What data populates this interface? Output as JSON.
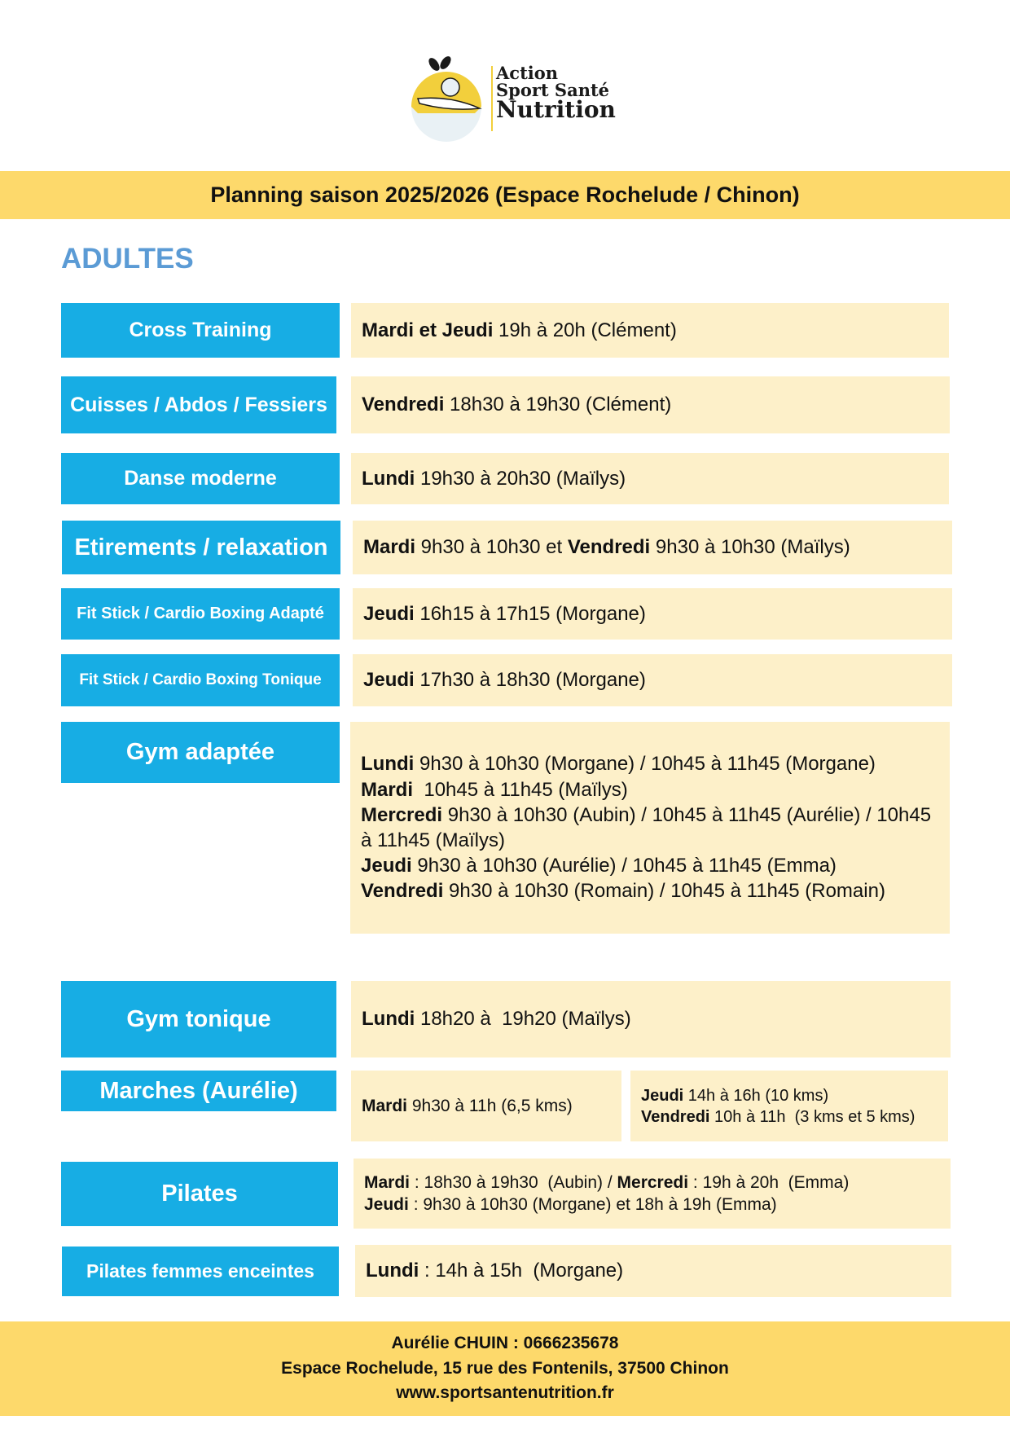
{
  "logo": {
    "text_lines": [
      "Action",
      "Sport Santé",
      "Nutrition"
    ],
    "colors": {
      "yellow": "#f2cf3c",
      "dark": "#1a1a1a",
      "light": "#e9f1f5"
    }
  },
  "header": {
    "title": "Planning saison 2025/2026 (Espace Rochelude / Chinon)"
  },
  "section": {
    "title": "ADULTES"
  },
  "colors": {
    "label_bg": "#17ade4",
    "value_bg": "#fdf0c9",
    "band": "#fdd96b",
    "section": "#5b9bd5"
  },
  "rows": [
    {
      "label": "Cross Training",
      "lines": [
        [
          {
            "b": "Mardi et Jeudi"
          },
          {
            "t": " 19h à 20h (Clément)"
          }
        ]
      ]
    },
    {
      "label": "Cuisses / Abdos / Fessiers",
      "lines": [
        [
          {
            "b": "Vendredi"
          },
          {
            "t": " 18h30 à 19h30 (Clément)"
          }
        ]
      ]
    },
    {
      "label": "Danse moderne",
      "lines": [
        [
          {
            "b": "Lundi"
          },
          {
            "t": " 19h30 à 20h30 (Maïlys)"
          }
        ]
      ]
    },
    {
      "label": "Etirements / relaxation",
      "lines": [
        [
          {
            "b": "Mardi"
          },
          {
            "t": " 9h30 à 10h30 et "
          },
          {
            "b": "Vendredi"
          },
          {
            "t": " 9h30 à 10h30 (Maïlys)"
          }
        ]
      ]
    },
    {
      "label": "Fit Stick / Cardio Boxing Adapté",
      "lines": [
        [
          {
            "b": "Jeudi"
          },
          {
            "t": " 16h15 à 17h15 (Morgane)"
          }
        ]
      ]
    },
    {
      "label": "Fit Stick / Cardio Boxing Tonique",
      "lines": [
        [
          {
            "b": "Jeudi"
          },
          {
            "t": " 17h30 à 18h30 (Morgane)"
          }
        ]
      ]
    },
    {
      "label": "Gym adaptée",
      "lines": [
        [
          {
            "b": "Lundi"
          },
          {
            "t": " 9h30 à 10h30 (Morgane) / 10h45 à 11h45 (Morgane)"
          }
        ],
        [
          {
            "b": "Mardi"
          },
          {
            "t": "  10h45 à 11h45 (Maïlys)"
          }
        ],
        [
          {
            "b": "Mercredi"
          },
          {
            "t": " 9h30 à 10h30 (Aubin) / 10h45 à 11h45 (Aurélie) / 10h45 à 11h45 (Maïlys)"
          }
        ],
        [
          {
            "b": "Jeudi"
          },
          {
            "t": " 9h30 à 10h30 (Aurélie) / 10h45 à 11h45 (Emma)"
          }
        ],
        [
          {
            "b": "Vendredi"
          },
          {
            "t": " 9h30 à 10h30 (Romain) / 10h45 à 11h45 (Romain)"
          }
        ]
      ]
    },
    {
      "label": "Gym tonique",
      "lines": [
        [
          {
            "b": "Lundi"
          },
          {
            "t": " 18h20 à  19h20 (Maïlys)"
          }
        ]
      ]
    },
    {
      "label": "Marches (Aurélie)",
      "lines": [
        [
          {
            "b": "Mardi"
          },
          {
            "t": " 9h30 à 11h (6,5 kms)"
          }
        ]
      ],
      "lines2": [
        [
          {
            "b": "Jeudi"
          },
          {
            "t": " 14h à 16h (10 kms)"
          }
        ],
        [
          {
            "b": "Vendredi"
          },
          {
            "t": " 10h à 11h  (3 kms et 5 kms)"
          }
        ]
      ]
    },
    {
      "label": "Pilates",
      "lines": [
        [
          {
            "b": "Mardi"
          },
          {
            "t": " : 18h30 à 19h30  (Aubin) / "
          },
          {
            "b": "Mercredi"
          },
          {
            "t": " : 19h à 20h  (Emma)"
          }
        ],
        [
          {
            "b": "Jeudi"
          },
          {
            "t": " : 9h30 à 10h30 (Morgane) et 18h à 19h (Emma)"
          }
        ]
      ]
    },
    {
      "label": "Pilates femmes enceintes",
      "lines": [
        [
          {
            "b": "Lundi"
          },
          {
            "t": " : 14h à 15h  (Morgane)"
          }
        ]
      ]
    }
  ],
  "footer": {
    "contact": "Aurélie CHUIN : 0666235678",
    "address": "Espace Rochelude, 15 rue des Fontenils, 37500 Chinon",
    "website": "www.sportsantenutrition.fr"
  }
}
